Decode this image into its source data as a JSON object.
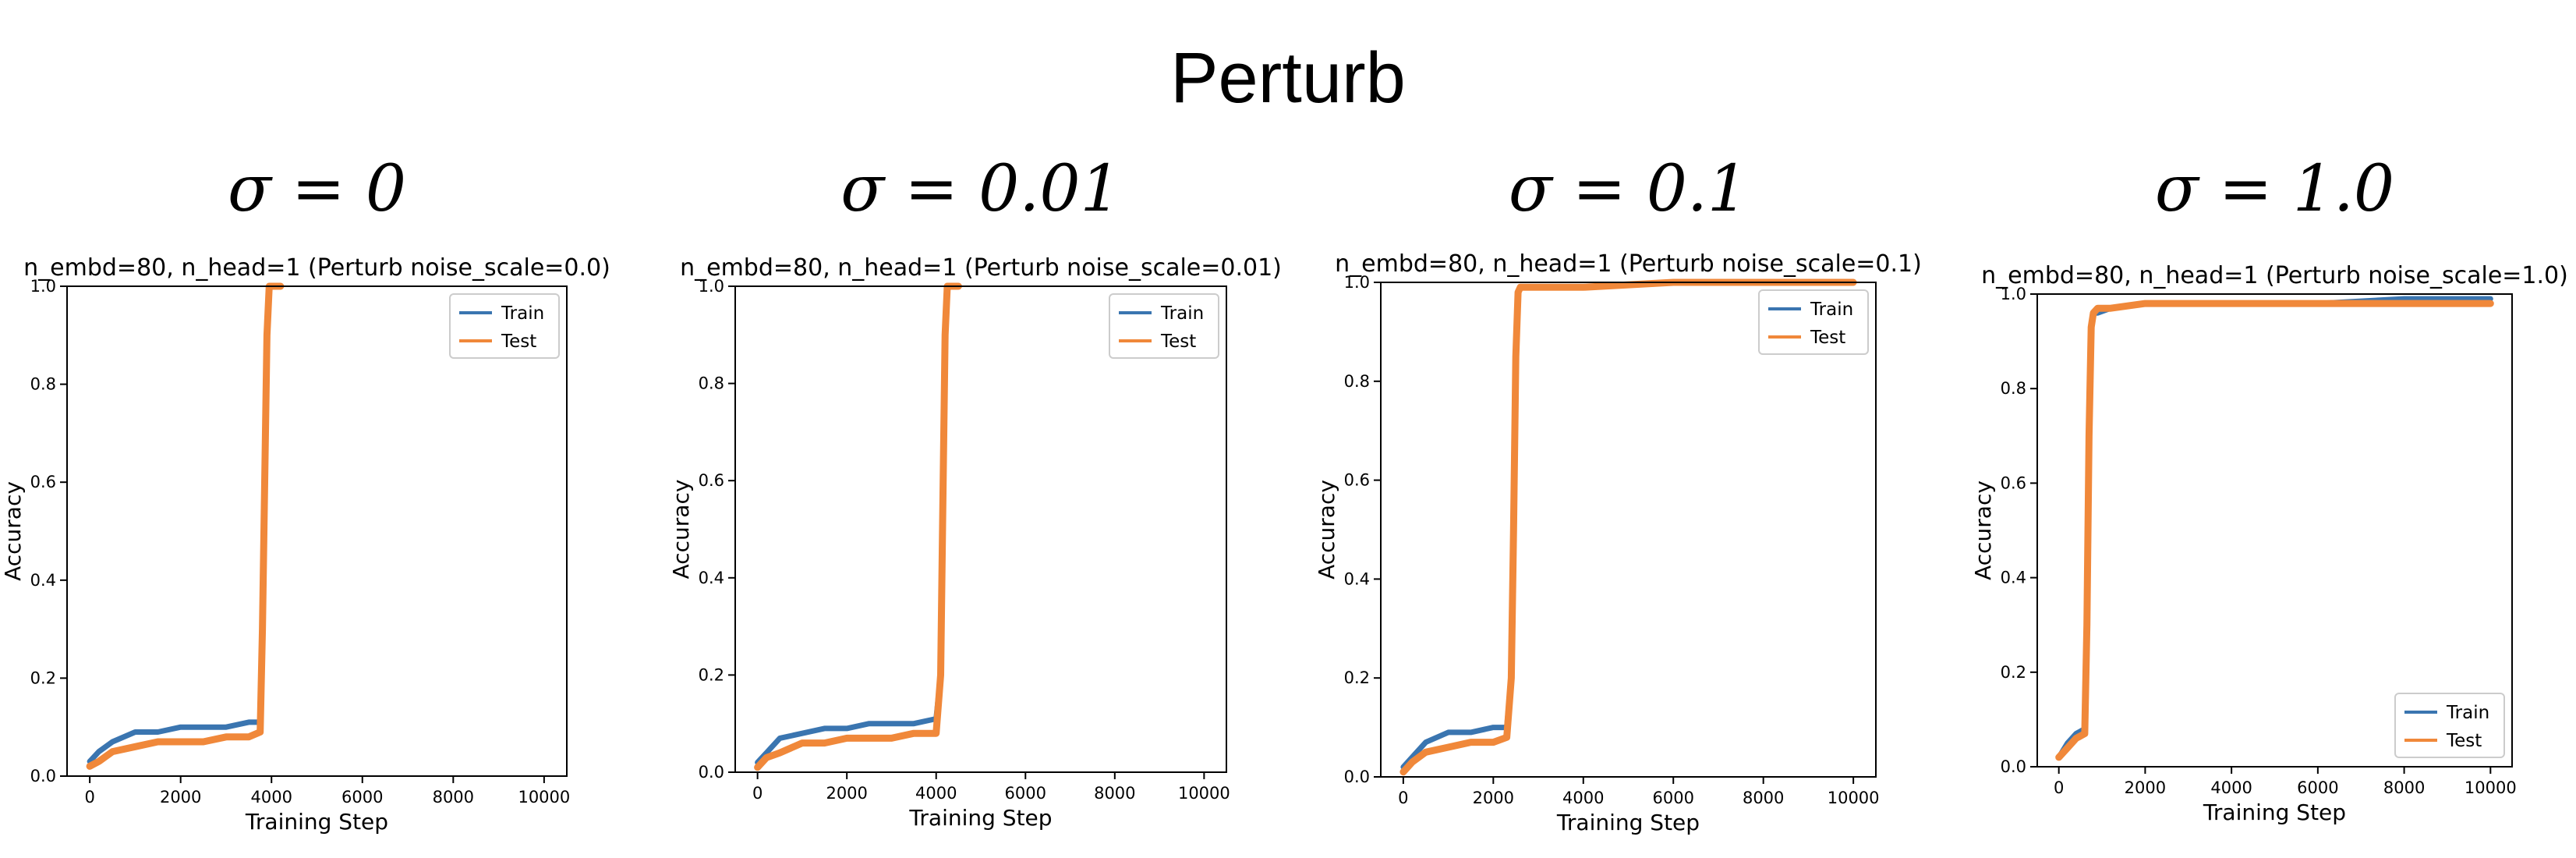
{
  "figure": {
    "title": "Perturb"
  },
  "colors": {
    "train": "#3a75b0",
    "test": "#f0883a",
    "axis": "#000000"
  },
  "chart_data": [
    {
      "type": "line",
      "panel_label": "σ = 0",
      "title": "n_embd=80, n_head=1 (Perturb noise_scale=0.0)",
      "xlabel": "Training Step",
      "ylabel": "Accuracy",
      "xlim": [
        -500,
        10500
      ],
      "ylim": [
        0.0,
        1.0
      ],
      "xticks": [
        0,
        2000,
        4000,
        6000,
        8000,
        10000
      ],
      "yticks": [
        0.0,
        0.2,
        0.4,
        0.6,
        0.8,
        1.0
      ],
      "ytick_labels": [
        "0.0",
        "0.2",
        "0.4",
        "0.6",
        "0.8",
        "1.0"
      ],
      "grid": false,
      "legend": "top-right",
      "series": [
        {
          "name": "Train",
          "x": [
            0,
            200,
            500,
            1000,
            1500,
            2000,
            2500,
            3000,
            3500,
            3750,
            3800,
            3850,
            3900,
            3950,
            4000,
            4200
          ],
          "y": [
            0.03,
            0.05,
            0.07,
            0.09,
            0.09,
            0.1,
            0.1,
            0.1,
            0.11,
            0.11,
            0.3,
            0.6,
            0.9,
            1.0,
            1.0,
            1.0
          ]
        },
        {
          "name": "Test",
          "x": [
            0,
            200,
            500,
            1000,
            1500,
            2000,
            2500,
            3000,
            3500,
            3750,
            3800,
            3850,
            3900,
            3950,
            4000,
            4200
          ],
          "y": [
            0.02,
            0.03,
            0.05,
            0.06,
            0.07,
            0.07,
            0.07,
            0.08,
            0.08,
            0.09,
            0.3,
            0.6,
            0.9,
            1.0,
            1.0,
            1.0
          ]
        }
      ]
    },
    {
      "type": "line",
      "panel_label": "σ = 0.01",
      "title": "n_embd=80, n_head=1 (Perturb noise_scale=0.01)",
      "xlabel": "Training Step",
      "ylabel": "Accuracy",
      "xlim": [
        -500,
        10500
      ],
      "ylim": [
        0.0,
        1.0
      ],
      "xticks": [
        0,
        2000,
        4000,
        6000,
        8000,
        10000
      ],
      "yticks": [
        0.0,
        0.2,
        0.4,
        0.6,
        0.8,
        1.0
      ],
      "ytick_labels": [
        "0.0",
        "0.2",
        "0.4",
        "0.6",
        "0.8",
        "1.0"
      ],
      "grid": false,
      "legend": "top-right",
      "series": [
        {
          "name": "Train",
          "x": [
            0,
            200,
            500,
            1000,
            1500,
            2000,
            2500,
            3000,
            3500,
            4000,
            4100,
            4150,
            4200,
            4250,
            4300,
            4500
          ],
          "y": [
            0.02,
            0.04,
            0.07,
            0.08,
            0.09,
            0.09,
            0.1,
            0.1,
            0.1,
            0.11,
            0.2,
            0.55,
            0.9,
            1.0,
            1.0,
            1.0
          ]
        },
        {
          "name": "Test",
          "x": [
            0,
            200,
            500,
            1000,
            1500,
            2000,
            2500,
            3000,
            3500,
            4000,
            4100,
            4150,
            4200,
            4250,
            4300,
            4500
          ],
          "y": [
            0.01,
            0.03,
            0.04,
            0.06,
            0.06,
            0.07,
            0.07,
            0.07,
            0.08,
            0.08,
            0.2,
            0.55,
            0.9,
            1.0,
            1.0,
            1.0
          ]
        }
      ]
    },
    {
      "type": "line",
      "panel_label": "σ = 0.1",
      "title": "n_embd=80, n_head=1 (Perturb noise_scale=0.1)",
      "xlabel": "Training Step",
      "ylabel": "Accuracy",
      "xlim": [
        -500,
        10500
      ],
      "ylim": [
        0.0,
        1.0
      ],
      "xticks": [
        0,
        2000,
        4000,
        6000,
        8000,
        10000
      ],
      "yticks": [
        0.0,
        0.2,
        0.4,
        0.6,
        0.8,
        1.0
      ],
      "ytick_labels": [
        "0.0",
        "0.2",
        "0.4",
        "0.6",
        "0.8",
        "1.0"
      ],
      "grid": false,
      "legend": "top-right",
      "series": [
        {
          "name": "Train",
          "x": [
            0,
            200,
            500,
            1000,
            1500,
            2000,
            2300,
            2400,
            2450,
            2500,
            2550,
            2600,
            3000,
            4000,
            6000,
            8000,
            10000
          ],
          "y": [
            0.02,
            0.04,
            0.07,
            0.09,
            0.09,
            0.1,
            0.1,
            0.2,
            0.5,
            0.85,
            0.98,
            0.99,
            0.99,
            0.99,
            1.0,
            1.0,
            1.0
          ]
        },
        {
          "name": "Test",
          "x": [
            0,
            200,
            500,
            1000,
            1500,
            2000,
            2300,
            2400,
            2450,
            2500,
            2550,
            2600,
            3000,
            4000,
            6000,
            8000,
            10000
          ],
          "y": [
            0.01,
            0.03,
            0.05,
            0.06,
            0.07,
            0.07,
            0.08,
            0.2,
            0.5,
            0.85,
            0.98,
            0.99,
            0.99,
            0.99,
            1.0,
            1.0,
            1.0
          ]
        }
      ]
    },
    {
      "type": "line",
      "panel_label": "σ = 1.0",
      "title": "n_embd=80, n_head=1 (Perturb noise_scale=1.0)",
      "xlabel": "Training Step",
      "ylabel": "Accuracy",
      "xlim": [
        -500,
        10500
      ],
      "ylim": [
        0.0,
        1.0
      ],
      "xticks": [
        0,
        2000,
        4000,
        6000,
        8000,
        10000
      ],
      "yticks": [
        0.0,
        0.2,
        0.4,
        0.6,
        0.8,
        1.0
      ],
      "ytick_labels": [
        "0.0",
        "0.2",
        "0.4",
        "0.6",
        "0.8",
        "1.0"
      ],
      "grid": false,
      "legend": "bottom-right",
      "series": [
        {
          "name": "Train",
          "x": [
            0,
            200,
            400,
            600,
            650,
            700,
            750,
            800,
            900,
            1200,
            2000,
            3000,
            4000,
            6000,
            8000,
            10000
          ],
          "y": [
            0.02,
            0.05,
            0.07,
            0.08,
            0.3,
            0.7,
            0.93,
            0.96,
            0.96,
            0.97,
            0.98,
            0.98,
            0.98,
            0.98,
            0.99,
            0.99
          ]
        },
        {
          "name": "Test",
          "x": [
            0,
            200,
            400,
            600,
            650,
            700,
            750,
            800,
            900,
            1200,
            2000,
            3000,
            4000,
            6000,
            8000,
            10000
          ],
          "y": [
            0.02,
            0.04,
            0.06,
            0.07,
            0.3,
            0.7,
            0.93,
            0.96,
            0.97,
            0.97,
            0.98,
            0.98,
            0.98,
            0.98,
            0.98,
            0.98
          ]
        }
      ]
    }
  ]
}
